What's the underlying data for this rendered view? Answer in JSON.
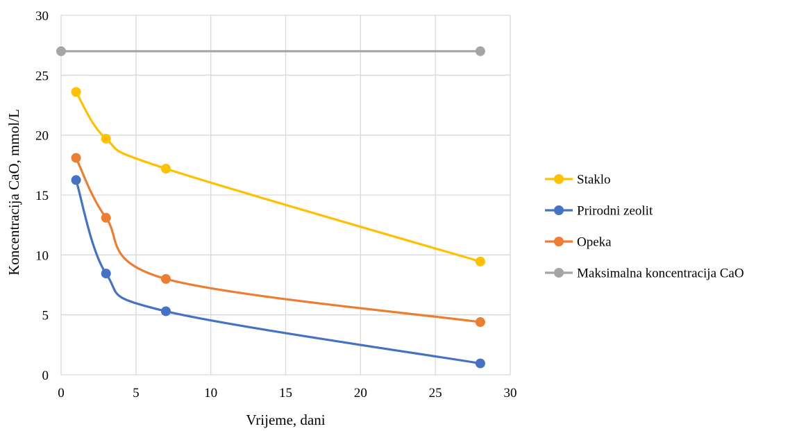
{
  "chart_data": {
    "type": "line",
    "title": "",
    "xlabel": "Vrijeme, dani",
    "ylabel": "Koncentracija CaO, mmol/L",
    "xlim": [
      0,
      30
    ],
    "ylim": [
      0,
      30
    ],
    "xticks": [
      0,
      5,
      10,
      15,
      20,
      25,
      30
    ],
    "yticks": [
      0,
      5,
      10,
      15,
      20,
      25,
      30
    ],
    "xtick_labels": [
      "0",
      "5",
      "10",
      "15",
      "20",
      "25",
      "30"
    ],
    "ytick_labels": [
      "0",
      "5",
      "10",
      "15",
      "20",
      "25",
      "30"
    ],
    "grid": true,
    "smooth": true,
    "legend_position": "right",
    "series": [
      {
        "name": "Staklo",
        "color": "#FFC000",
        "x": [
          1,
          3,
          7,
          28
        ],
        "y": [
          23.6,
          19.7,
          17.2,
          9.45
        ]
      },
      {
        "name": "Prirodni zeolit",
        "color": "#4472C4",
        "x": [
          1,
          3,
          7,
          28
        ],
        "y": [
          16.25,
          8.45,
          5.3,
          0.95
        ]
      },
      {
        "name": "Opeka",
        "color": "#ED7D31",
        "x": [
          1,
          3,
          7,
          28
        ],
        "y": [
          18.1,
          13.1,
          8.0,
          4.4
        ]
      },
      {
        "name": "Maksimalna koncentracija CaO",
        "color": "#A5A5A5",
        "x": [
          0,
          28
        ],
        "y": [
          27,
          27
        ]
      }
    ]
  }
}
